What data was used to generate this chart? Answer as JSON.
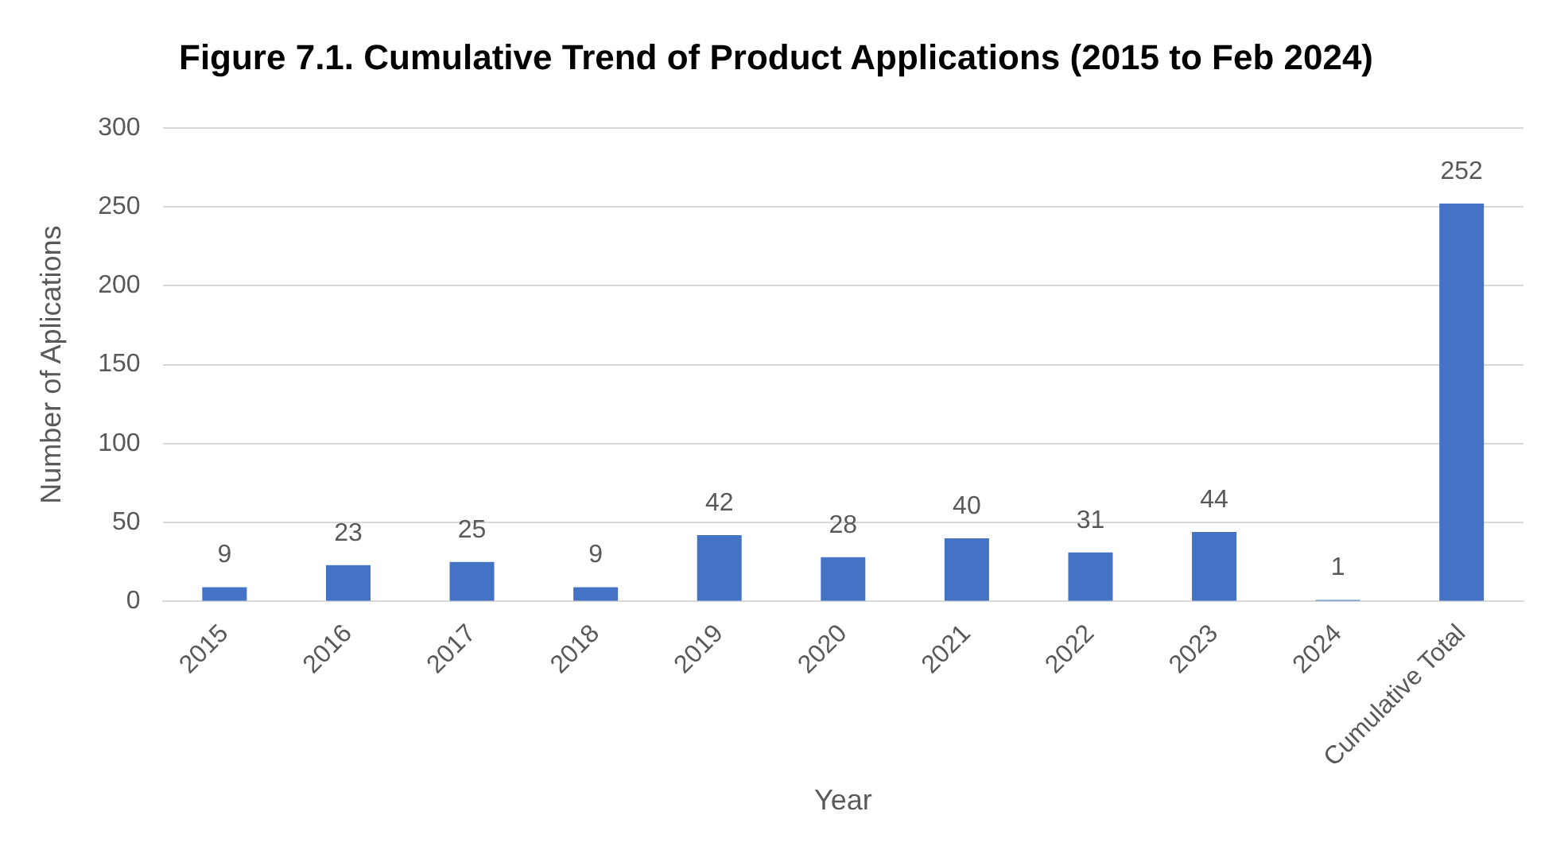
{
  "chart_data": {
    "type": "bar",
    "title": "Figure 7.1. Cumulative Trend of Product Applications (2015 to Feb 2024)",
    "xlabel": "Year",
    "ylabel": "Number of Aplications",
    "categories": [
      "2015",
      "2016",
      "2017",
      "2018",
      "2019",
      "2020",
      "2021",
      "2022",
      "2023",
      "2024",
      "Cumulative Total"
    ],
    "values": [
      9,
      23,
      25,
      9,
      42,
      28,
      40,
      31,
      44,
      1,
      252
    ],
    "color": "#4472c4",
    "ylim": [
      0,
      300
    ],
    "yticks": [
      0,
      50,
      100,
      150,
      200,
      250,
      300
    ],
    "grid": "y",
    "data_labels": true,
    "legend": false
  }
}
